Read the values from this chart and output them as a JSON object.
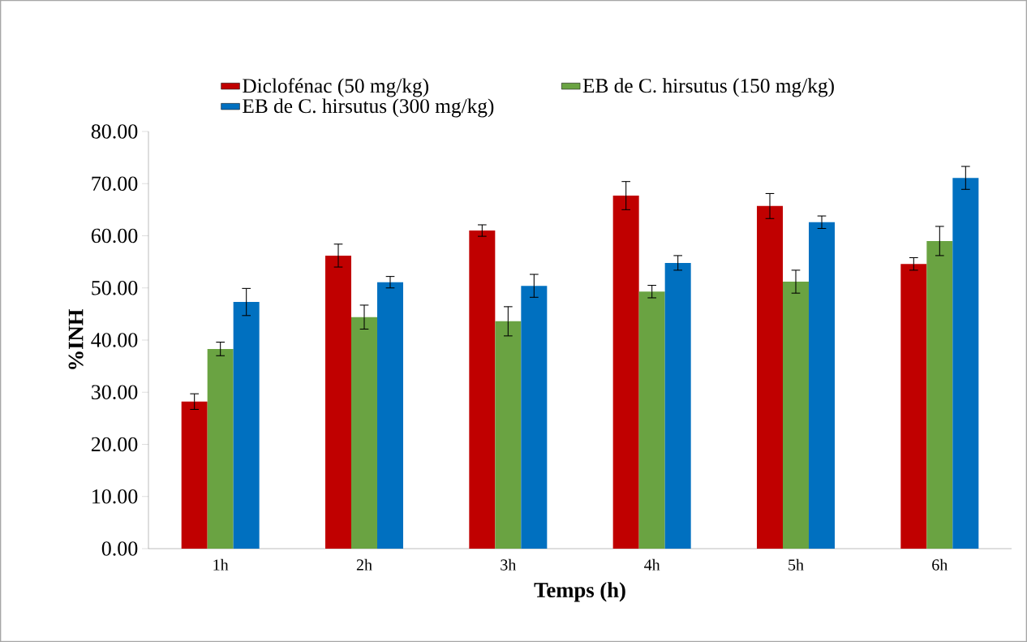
{
  "chart_data": {
    "type": "bar",
    "xlabel": "Temps (h)",
    "ylabel": "%INH",
    "categories": [
      "1h",
      "2h",
      "3h",
      "4h",
      "5h",
      "6h"
    ],
    "series": [
      {
        "name": "Diclofénac (50 mg/kg)",
        "color": "#c00000",
        "values": [
          28.2,
          56.2,
          61.0,
          67.7,
          65.7,
          54.6
        ],
        "errors": [
          1.5,
          2.2,
          1.1,
          2.7,
          2.4,
          1.2
        ]
      },
      {
        "name": "EB de C. hirsutus (150 mg/kg)",
        "color": "#6aa342",
        "values": [
          38.3,
          44.4,
          43.6,
          49.3,
          51.2,
          59.0
        ],
        "errors": [
          1.3,
          2.3,
          2.8,
          1.2,
          2.2,
          2.8
        ]
      },
      {
        "name": "EB de C. hirsutus (300 mg/kg)",
        "color": "#0070c0",
        "values": [
          47.3,
          51.1,
          50.4,
          54.8,
          62.6,
          71.1
        ],
        "errors": [
          2.6,
          1.1,
          2.2,
          1.4,
          1.2,
          2.2
        ]
      }
    ],
    "ylim": [
      0,
      80
    ],
    "yticks": [
      {
        "value": 0,
        "label": "0.00"
      },
      {
        "value": 10,
        "label": "10.00"
      },
      {
        "value": 20,
        "label": "20.00"
      },
      {
        "value": 30,
        "label": "30.00"
      },
      {
        "value": 40,
        "label": "40.00"
      },
      {
        "value": 50,
        "label": "50.00"
      },
      {
        "value": 60,
        "label": "60.00"
      },
      {
        "value": 70,
        "label": "70.00"
      },
      {
        "value": 80,
        "label": "80.00"
      }
    ],
    "legend": "top"
  }
}
